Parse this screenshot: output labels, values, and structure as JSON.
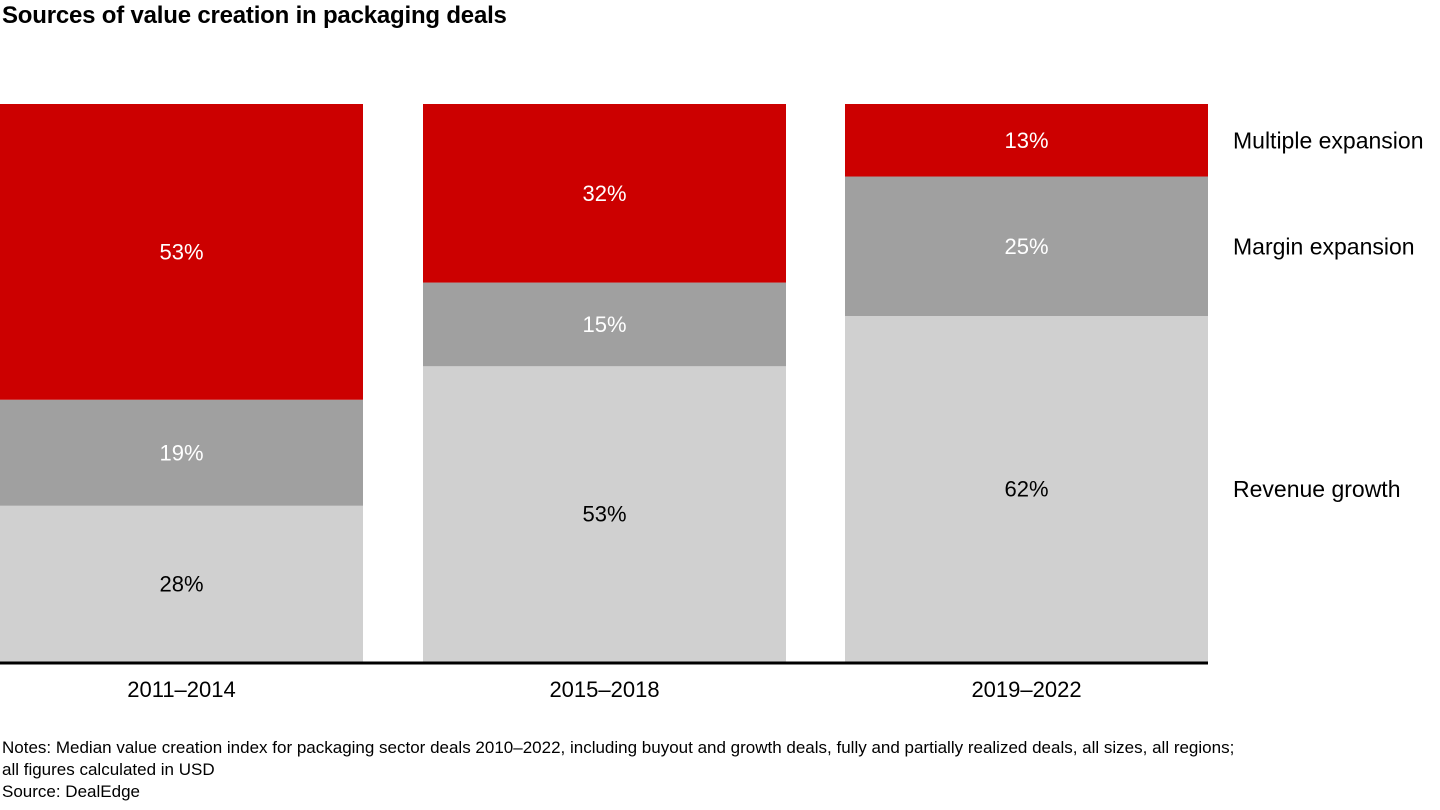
{
  "chart_data": {
    "type": "bar",
    "stacked": true,
    "normalized": true,
    "title": "Sources of value creation in packaging deals",
    "xlabel": "",
    "ylabel": "",
    "ylim": [
      0,
      100
    ],
    "grid": false,
    "legend_placement": "right",
    "categories": [
      "2011–2014",
      "2015–2018",
      "2019–2022"
    ],
    "series": [
      {
        "name": "Revenue growth",
        "color": "#D0D0D0",
        "label_color": "#000000",
        "values": [
          28,
          53,
          62
        ],
        "labels": [
          "28%",
          "53%",
          "62%"
        ]
      },
      {
        "name": "Margin expansion",
        "color": "#A0A0A0",
        "label_color": "#FFFFFF",
        "values": [
          19,
          15,
          25
        ],
        "labels": [
          "19%",
          "15%",
          "25%"
        ]
      },
      {
        "name": "Multiple expansion",
        "color": "#CC0000",
        "label_color": "#FFFFFF",
        "values": [
          53,
          32,
          13
        ],
        "labels": [
          "53%",
          "32%",
          "13%"
        ]
      }
    ]
  },
  "notes": {
    "line1": "Notes: Median value creation index for packaging sector deals 2010–2022, including buyout and growth deals, fully and partially realized deals, all sizes, all regions;",
    "line2": "all figures calculated in USD",
    "source": "Source: DealEdge"
  }
}
